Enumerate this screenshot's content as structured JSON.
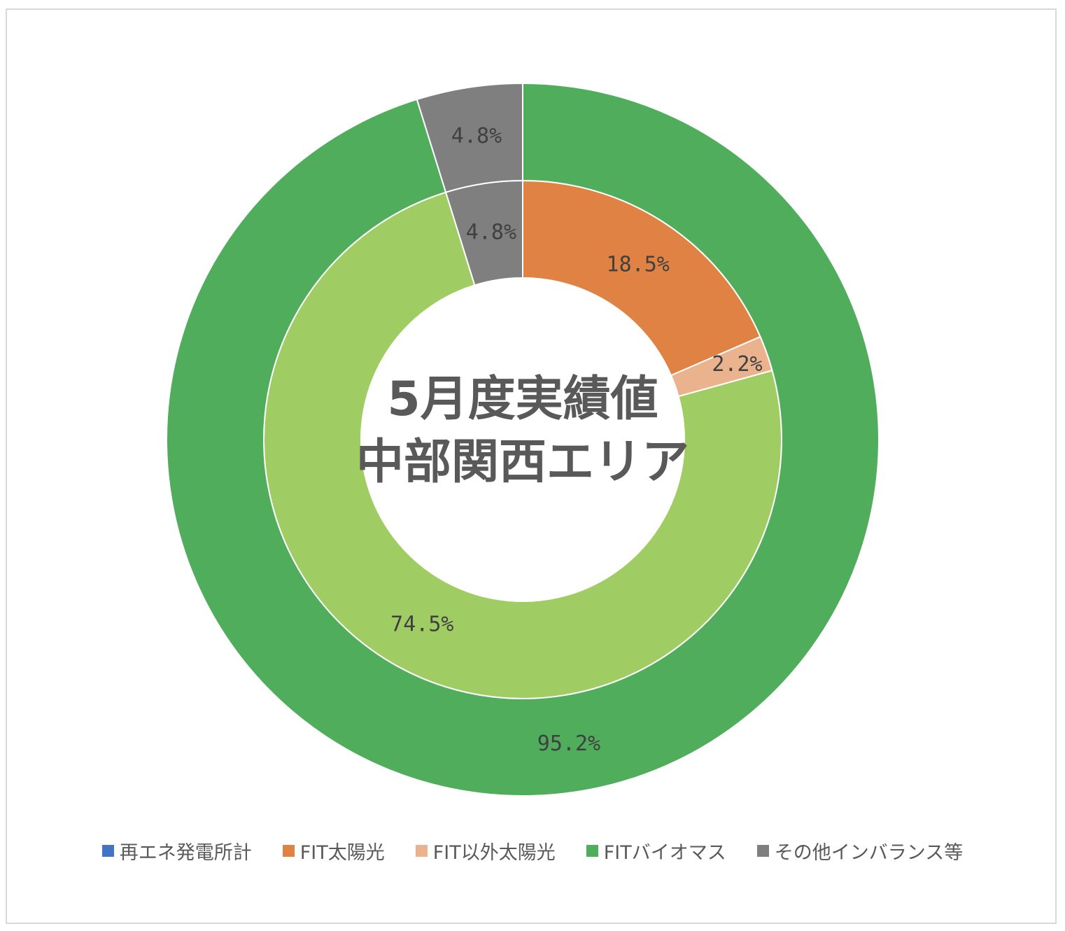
{
  "chart_data": {
    "type": "doughnut",
    "title_lines": [
      "5月度実績値",
      "中部関西エリア"
    ],
    "legend": [
      {
        "name": "再エネ発電所計",
        "color": "#4472c4"
      },
      {
        "name": "FIT太陽光",
        "color": "#e08243"
      },
      {
        "name": "FIT以外太陽光",
        "color": "#eab38d"
      },
      {
        "name": "FITバイオマス",
        "color": "#4fad5b"
      },
      {
        "name": "その他インバランス等",
        "color": "#7f7f7f"
      }
    ],
    "legend_placement": "bottom",
    "rings": [
      {
        "ring": "inner",
        "slices": [
          {
            "name": "FIT太陽光",
            "value": 18.5,
            "label": "18.5%",
            "color": "#e08243"
          },
          {
            "name": "FIT以外太陽光",
            "value": 2.2,
            "label": "2.2%",
            "color": "#eab38d"
          },
          {
            "name": "FITバイオマス",
            "value": 74.5,
            "label": "74.5%",
            "color": "#a0cd63"
          },
          {
            "name": "その他インバランス等",
            "value": 4.8,
            "label": "4.8%",
            "color": "#7f7f7f"
          }
        ]
      },
      {
        "ring": "outer",
        "slices": [
          {
            "name": "再エネ発電所計",
            "value": 95.2,
            "label": "95.2%",
            "color": "#4fad5b"
          },
          {
            "name": "その他インバランス等",
            "value": 4.8,
            "label": "4.8%",
            "color": "#7f7f7f"
          }
        ]
      }
    ]
  }
}
